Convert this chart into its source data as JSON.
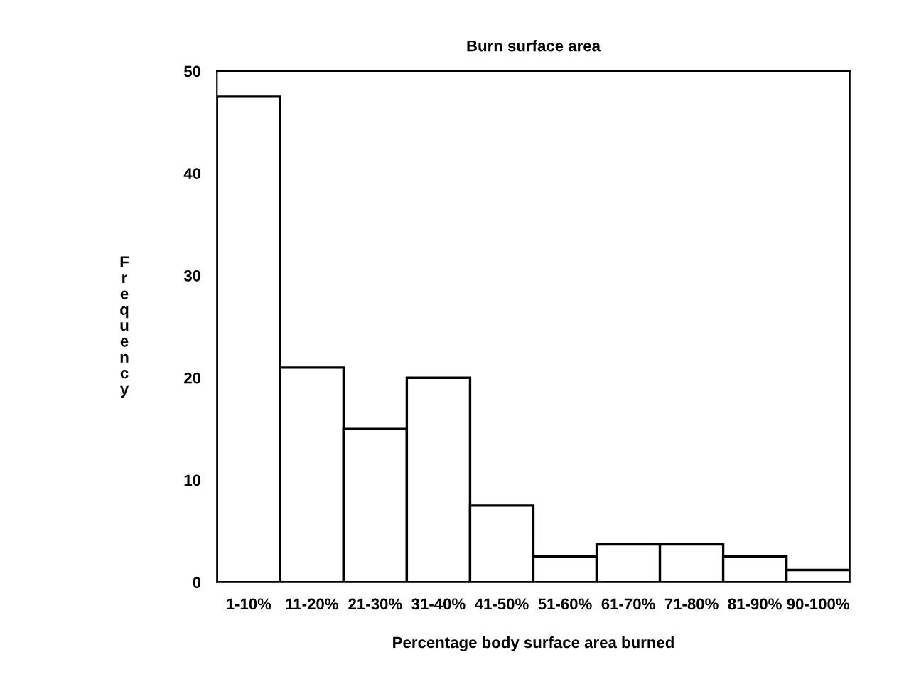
{
  "chart_data": {
    "type": "bar",
    "title": "Burn surface area",
    "xlabel": "Percentage body surface area burned",
    "ylabel": "Frequency",
    "categories": [
      "1-10%",
      "11-20%",
      "21-30%",
      "31-40%",
      "41-50%",
      "51-60%",
      "61-70%",
      "71-80%",
      "81-90%",
      "90-100%"
    ],
    "values": [
      47.5,
      21,
      15,
      20,
      7.5,
      2.5,
      3.7,
      3.7,
      2.5,
      1.2
    ],
    "color": "#ffffff",
    "ylim": [
      0,
      50
    ],
    "yticks": [
      0,
      10,
      20,
      30,
      40,
      50
    ],
    "grid": false,
    "legend": false
  }
}
